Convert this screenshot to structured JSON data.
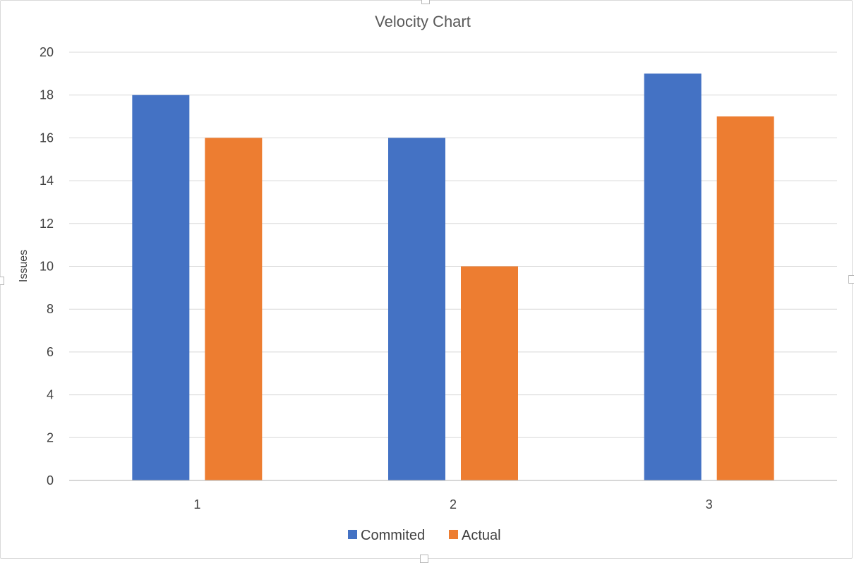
{
  "chart_data": {
    "type": "bar",
    "title": "Velocity Chart",
    "xlabel": "",
    "ylabel": "Issues",
    "categories": [
      "1",
      "2",
      "3"
    ],
    "series": [
      {
        "name": "Commited",
        "values": [
          18,
          16,
          19
        ],
        "color": "#4472C4"
      },
      {
        "name": "Actual",
        "values": [
          16,
          10,
          17
        ],
        "color": "#ED7D31"
      }
    ],
    "ylim": [
      0,
      20
    ],
    "yticks": [
      0,
      2,
      4,
      6,
      8,
      10,
      12,
      14,
      16,
      18,
      20
    ],
    "grid": true,
    "legend_position": "bottom"
  }
}
